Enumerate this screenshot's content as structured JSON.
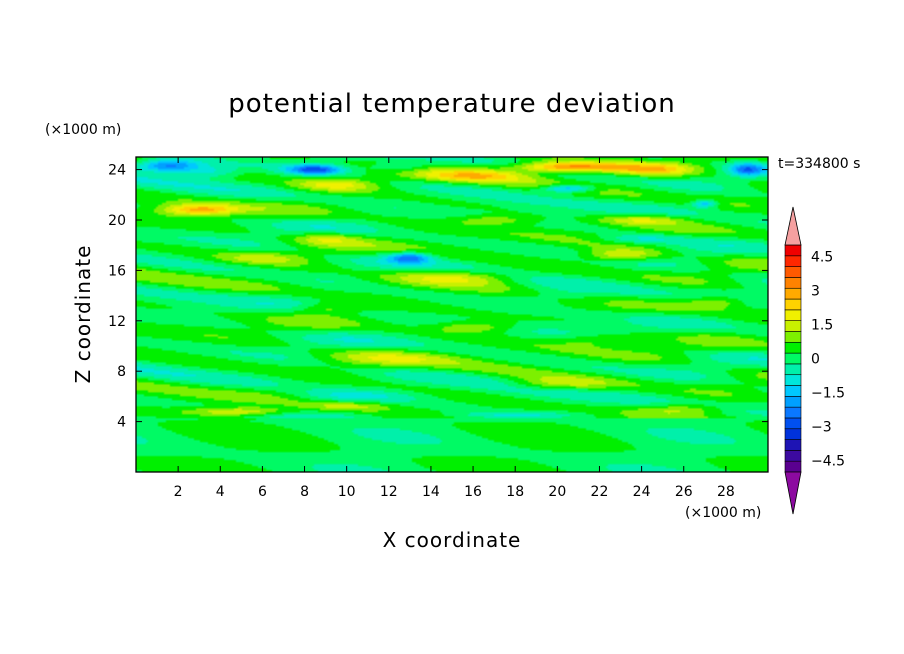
{
  "chart_data": {
    "type": "heatmap",
    "title": "potential temperature deviation",
    "xlabel": "X coordinate",
    "ylabel": "Z coordinate",
    "x_unit": "(×1000 m)",
    "y_unit": "(×1000 m)",
    "time_label": "t=334800 s",
    "xlim": [
      0,
      30
    ],
    "ylim": [
      0,
      25
    ],
    "x_ticks": [
      2,
      4,
      6,
      8,
      10,
      12,
      14,
      16,
      18,
      20,
      22,
      24,
      26,
      28
    ],
    "y_ticks": [
      4,
      8,
      12,
      16,
      20,
      24
    ],
    "grid": false,
    "colorbar": {
      "position": "right",
      "min": -5,
      "max": 5,
      "step": 0.5,
      "labels": [
        "4.5",
        "3",
        "1.5",
        "0",
        "−1.5",
        "−3",
        "−4.5"
      ],
      "label_values": [
        4.5,
        3,
        1.5,
        0,
        -1.5,
        -3,
        -4.5
      ],
      "colors": [
        "#5a0090",
        "#3c0aa0",
        "#1e14b4",
        "#0032dc",
        "#0050f0",
        "#0a78ff",
        "#00a0ff",
        "#00c8ff",
        "#00e6dc",
        "#00f0aa",
        "#00fa64",
        "#00f000",
        "#7df000",
        "#c8f000",
        "#f0f000",
        "#ffd200",
        "#ffaa00",
        "#ff8200",
        "#ff5a00",
        "#ff2800",
        "#f00000"
      ],
      "over_color": "#f5a0a0",
      "under_color": "#8c0aa0"
    },
    "field": {
      "description_units": "x in km, z in km, value in K",
      "background": 0.2,
      "blobs": [
        {
          "x": 1.5,
          "z": 24.3,
          "v": -3.2,
          "sx": 1.6,
          "sz": 0.5
        },
        {
          "x": 3.5,
          "z": 23.8,
          "v": -1.5,
          "sx": 1.5,
          "sz": 0.5
        },
        {
          "x": 8.5,
          "z": 24.0,
          "v": -3.0,
          "sx": 1.3,
          "sz": 0.4
        },
        {
          "x": 12.5,
          "z": 24.2,
          "v": -1.2,
          "sx": 1.5,
          "sz": 0.4
        },
        {
          "x": 29.0,
          "z": 24.0,
          "v": -2.4,
          "sx": 0.8,
          "sz": 0.5
        },
        {
          "x": 20.5,
          "z": 22.5,
          "v": -2.4,
          "sx": 1.2,
          "sz": 0.3
        },
        {
          "x": 27.0,
          "z": 21.3,
          "v": -2.0,
          "sx": 0.6,
          "sz": 0.3
        },
        {
          "x": 13.0,
          "z": 17.0,
          "v": -2.6,
          "sx": 1.0,
          "sz": 0.4
        },
        {
          "x": 20.5,
          "z": 24.2,
          "v": 3.2,
          "sx": 2.5,
          "sz": 0.4
        },
        {
          "x": 16.0,
          "z": 23.5,
          "v": 1.8,
          "sx": 2.5,
          "sz": 0.5
        },
        {
          "x": 24.5,
          "z": 24.0,
          "v": 2.0,
          "sx": 2.0,
          "sz": 0.5
        },
        {
          "x": 9.5,
          "z": 22.8,
          "v": 1.5,
          "sx": 2.0,
          "sz": 0.5
        },
        {
          "x": 3.0,
          "z": 20.8,
          "v": 2.6,
          "sx": 1.8,
          "sz": 0.45
        },
        {
          "x": 24.0,
          "z": 20.0,
          "v": 1.5,
          "sx": 2.0,
          "sz": 0.4
        },
        {
          "x": 17.0,
          "z": 20.0,
          "v": 1.0,
          "sx": 2.0,
          "sz": 0.4
        },
        {
          "x": 9.0,
          "z": 18.5,
          "v": 1.2,
          "sx": 1.5,
          "sz": 0.5
        },
        {
          "x": 23.0,
          "z": 17.2,
          "v": 1.8,
          "sx": 2.0,
          "sz": 0.5
        },
        {
          "x": 15.5,
          "z": 15.5,
          "v": 1.6,
          "sx": 3.0,
          "sz": 0.6
        },
        {
          "x": 6.0,
          "z": 17.0,
          "v": 1.0,
          "sx": 2.0,
          "sz": 0.5
        },
        {
          "x": 27.5,
          "z": 13.5,
          "v": 1.2,
          "sx": 1.5,
          "sz": 0.5
        },
        {
          "x": 9.0,
          "z": 13.0,
          "v": 1.0,
          "sx": 1.5,
          "sz": 0.5
        },
        {
          "x": 16.0,
          "z": 11.5,
          "v": 1.3,
          "sx": 2.0,
          "sz": 0.5
        },
        {
          "x": 22.0,
          "z": 10.5,
          "v": 1.0,
          "sx": 2.0,
          "sz": 0.5
        },
        {
          "x": 12.0,
          "z": 9.0,
          "v": 0.8,
          "sx": 3.0,
          "sz": 0.6
        },
        {
          "x": 20.0,
          "z": 7.0,
          "v": 1.2,
          "sx": 2.5,
          "sz": 0.5
        },
        {
          "x": 5.0,
          "z": 4.8,
          "v": 1.8,
          "sx": 2.5,
          "sz": 0.35
        },
        {
          "x": 10.0,
          "z": 5.2,
          "v": 1.2,
          "sx": 2.0,
          "sz": 0.4
        },
        {
          "x": 26.0,
          "z": 5.0,
          "v": 1.0,
          "sx": 2.0,
          "sz": 0.4
        },
        {
          "x": 20.0,
          "z": 14.0,
          "v": -0.8,
          "sx": 3.0,
          "sz": 0.7
        },
        {
          "x": 10.0,
          "z": 6.0,
          "v": -0.9,
          "sx": 3.0,
          "sz": 0.5
        },
        {
          "x": 18.0,
          "z": 4.5,
          "v": -1.2,
          "sx": 3.0,
          "sz": 0.3
        },
        {
          "x": 24.0,
          "z": 18.5,
          "v": -1.2,
          "sx": 2.0,
          "sz": 0.4
        }
      ]
    }
  }
}
